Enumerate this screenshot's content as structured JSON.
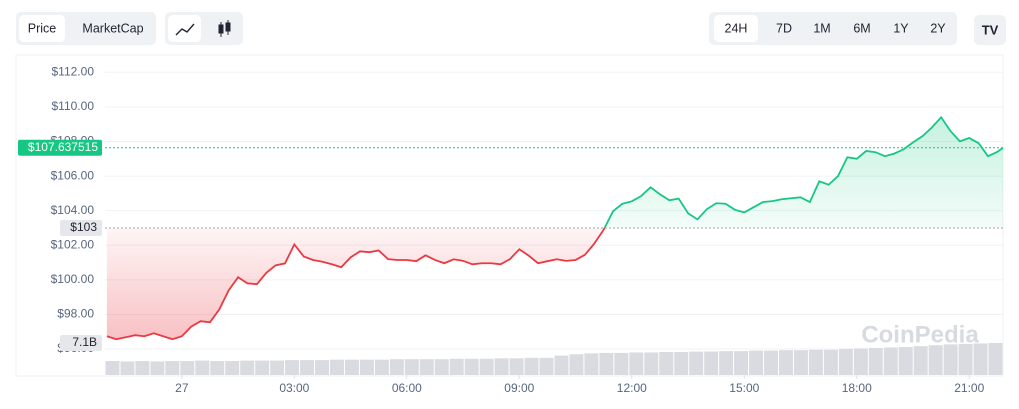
{
  "toolbar": {
    "metrics": [
      "Price",
      "MarketCap"
    ],
    "active_metric": 0,
    "ranges": [
      "24H",
      "7D",
      "1M",
      "6M",
      "1Y",
      "2Y"
    ],
    "active_range": 0
  },
  "chart_data": {
    "type": "line",
    "watermark": "CoinPedia",
    "up_color": "#16c784",
    "down_color": "#ea3943",
    "x": [
      -2,
      -1.75,
      -1.5,
      -1.25,
      -1,
      -0.75,
      -0.5,
      -0.25,
      0,
      0.25,
      0.5,
      0.75,
      1,
      1.25,
      1.5,
      1.75,
      2,
      2.25,
      2.5,
      2.75,
      3,
      3.25,
      3.5,
      3.75,
      4,
      4.25,
      4.5,
      4.75,
      5,
      5.25,
      5.5,
      5.75,
      6,
      6.25,
      6.5,
      6.75,
      7,
      7.25,
      7.5,
      7.75,
      8,
      8.25,
      8.5,
      8.75,
      9,
      9.25,
      9.5,
      9.75,
      10,
      10.25,
      10.5,
      10.75,
      11,
      11.25,
      11.5,
      11.75,
      12,
      12.25,
      12.5,
      12.75,
      13,
      13.25,
      13.5,
      13.75,
      14,
      14.25,
      14.5,
      14.75,
      15,
      15.25,
      15.5,
      15.75,
      16,
      16.25,
      16.5,
      16.75,
      17,
      17.25,
      17.5,
      17.75,
      18,
      18.25,
      18.5,
      18.75,
      19,
      19.25,
      19.5,
      19.75,
      20,
      20.25,
      20.5,
      20.75,
      21,
      21.25,
      21.5,
      21.75,
      21.9
    ],
    "values": [
      96.74,
      96.57,
      96.68,
      96.8,
      96.74,
      96.91,
      96.74,
      96.57,
      96.74,
      97.3,
      97.61,
      97.55,
      98.3,
      99.4,
      100.15,
      99.8,
      99.75,
      100.4,
      100.84,
      100.95,
      102.05,
      101.35,
      101.15,
      101.05,
      100.9,
      100.73,
      101.3,
      101.65,
      101.6,
      101.7,
      101.2,
      101.15,
      101.15,
      101.08,
      101.42,
      101.15,
      100.96,
      101.19,
      101.1,
      100.9,
      100.96,
      100.96,
      100.9,
      101.2,
      101.77,
      101.4,
      100.96,
      101.08,
      101.19,
      101.1,
      101.15,
      101.45,
      102.1,
      102.9,
      103.97,
      104.4,
      104.54,
      104.85,
      105.35,
      104.95,
      104.6,
      104.7,
      103.85,
      103.5,
      104.08,
      104.43,
      104.4,
      104.05,
      103.9,
      104.2,
      104.5,
      104.55,
      104.66,
      104.72,
      104.77,
      104.5,
      105.7,
      105.5,
      106,
      107.09,
      107,
      107.45,
      107.38,
      107.15,
      107.3,
      107.55,
      107.95,
      108.3,
      108.8,
      109.4,
      108.6,
      108.01,
      108.2,
      107.9,
      107.15,
      107.4,
      107.637515
    ],
    "xlim": [
      -2.05,
      21.9
    ],
    "xticks": [
      {
        "value": 0,
        "label": "27"
      },
      {
        "value": 3,
        "label": "03:00"
      },
      {
        "value": 6,
        "label": "06:00"
      },
      {
        "value": 9,
        "label": "09:00"
      },
      {
        "value": 12,
        "label": "12:00"
      },
      {
        "value": 15,
        "label": "15:00"
      },
      {
        "value": 18,
        "label": "18:00"
      },
      {
        "value": 21,
        "label": "21:00"
      }
    ],
    "ylim": [
      94.5,
      113
    ],
    "yticks": [
      {
        "value": 96,
        "label": "$96.00"
      },
      {
        "value": 98,
        "label": "$98.00"
      },
      {
        "value": 100,
        "label": "$100.00"
      },
      {
        "value": 102,
        "label": "$102.00"
      },
      {
        "value": 104,
        "label": "$104.00"
      },
      {
        "value": 106,
        "label": "$106.00"
      },
      {
        "value": 108,
        "label": "$108.00"
      },
      {
        "value": 110,
        "label": "$110.00"
      },
      {
        "value": 112,
        "label": "$112.00"
      }
    ],
    "grid": true,
    "reference": {
      "value": 103,
      "label": "$103"
    },
    "current": {
      "value": 107.637515,
      "label": "$107.637515"
    },
    "volume": {
      "color": "#d9dbe0",
      "ylim": [
        0,
        7.1
      ],
      "last_label": "7.1B",
      "values": [
        3.1,
        3.0,
        3.1,
        3.0,
        3.1,
        3.1,
        3.2,
        3.1,
        3.1,
        3.2,
        3.2,
        3.2,
        3.3,
        3.3,
        3.3,
        3.4,
        3.4,
        3.4,
        3.4,
        3.5,
        3.5,
        3.5,
        3.5,
        3.6,
        3.6,
        3.6,
        3.7,
        3.7,
        3.8,
        3.8,
        4.3,
        4.6,
        4.8,
        4.9,
        4.9,
        5.0,
        5.0,
        5.1,
        5.1,
        5.2,
        5.2,
        5.3,
        5.3,
        5.4,
        5.4,
        5.5,
        5.5,
        5.6,
        5.6,
        5.8,
        5.9,
        6.0,
        6.1,
        6.2,
        6.4,
        6.6,
        6.8,
        6.9,
        7.0,
        7.1
      ]
    }
  }
}
